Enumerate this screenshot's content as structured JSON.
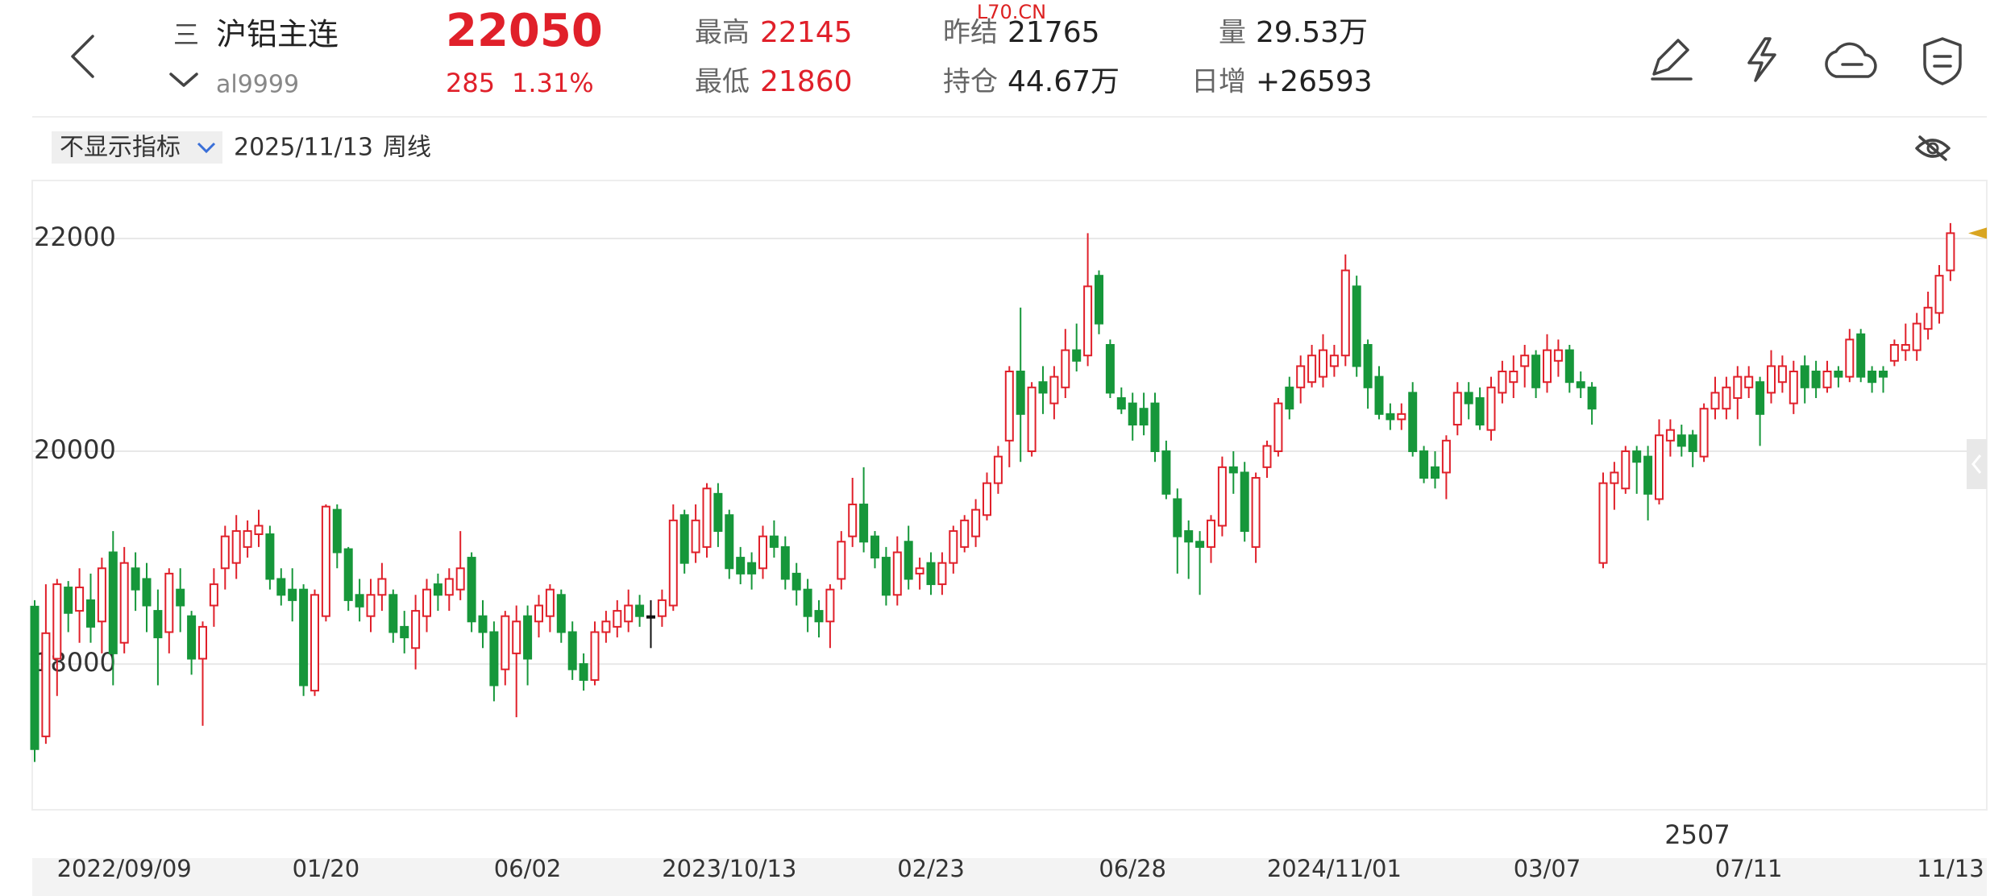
{
  "watermark": "L70.CN",
  "header": {
    "symbol_menu": "三",
    "name": "沪铝主连",
    "code": "al9999",
    "price": "22050",
    "change": "285",
    "change_pct": "1.31%",
    "high_label": "最高",
    "high": "22145",
    "low_label": "最低",
    "low": "21860",
    "prev_settle_label": "昨结",
    "prev_settle": "21765",
    "open_interest_label": "持仓",
    "open_interest": "44.67万",
    "volume_label": "量",
    "volume": "29.53万",
    "daily_increase_label": "日增",
    "daily_increase": "+26593"
  },
  "toolbar": {
    "indicator": "不显示指标",
    "date": "2025/11/13",
    "period": "周线"
  },
  "chart_data": {
    "type": "candlestick",
    "categories": [
      null,
      null,
      null,
      null,
      null,
      null,
      null,
      null,
      "2022/09/09",
      null,
      null,
      null,
      null,
      null,
      null,
      null,
      null,
      null,
      null,
      null,
      null,
      null,
      null,
      null,
      null,
      null,
      "01/20",
      null,
      null,
      null,
      null,
      null,
      null,
      null,
      null,
      null,
      null,
      null,
      null,
      null,
      null,
      null,
      null,
      null,
      "06/02",
      null,
      null,
      null,
      null,
      null,
      null,
      null,
      null,
      null,
      null,
      null,
      null,
      null,
      null,
      null,
      null,
      null,
      "2023/10/13",
      null,
      null,
      null,
      null,
      null,
      null,
      null,
      null,
      null,
      null,
      null,
      null,
      null,
      null,
      null,
      null,
      null,
      "02/23",
      null,
      null,
      null,
      null,
      null,
      null,
      null,
      null,
      null,
      null,
      null,
      null,
      null,
      null,
      null,
      null,
      null,
      "06/28",
      null,
      null,
      null,
      null,
      null,
      null,
      null,
      null,
      null,
      null,
      null,
      null,
      null,
      null,
      null,
      null,
      null,
      "2024/11/01",
      null,
      null,
      null,
      null,
      null,
      null,
      null,
      null,
      null,
      null,
      null,
      null,
      null,
      null,
      null,
      null,
      null,
      null,
      "03/07",
      null,
      null,
      null,
      null,
      null,
      null,
      null,
      null,
      null,
      null,
      null,
      null,
      null,
      null,
      null,
      null,
      null,
      "07/11",
      null,
      null,
      null,
      null,
      null,
      null,
      null,
      null,
      null,
      null,
      null,
      null,
      null,
      null,
      null,
      null,
      null,
      "11/13"
    ],
    "open": [
      18540,
      17320,
      18050,
      18720,
      18500,
      18600,
      18400,
      19050,
      18200,
      18900,
      18800,
      18500,
      18300,
      18700,
      18450,
      18050,
      18550,
      18900,
      18950,
      19100,
      19220,
      19220,
      18800,
      18700,
      18700,
      17750,
      18450,
      19450,
      19080,
      18650,
      18450,
      18650,
      18650,
      18350,
      18150,
      18450,
      18750,
      18650,
      18700,
      19000,
      18450,
      18300,
      17950,
      18100,
      18450,
      18400,
      18450,
      18650,
      18300,
      18000,
      17850,
      18300,
      18350,
      18400,
      18550,
      18450,
      18450,
      18550,
      19400,
      19050,
      19100,
      19600,
      19400,
      19000,
      18950,
      18900,
      19200,
      19100,
      18850,
      18700,
      18500,
      18400,
      18800,
      19200,
      19500,
      19200,
      19000,
      18650,
      19150,
      18850,
      18950,
      18750,
      18950,
      19100,
      19200,
      19400,
      19700,
      20100,
      20750,
      20000,
      20650,
      20450,
      20600,
      20950,
      20900,
      21650,
      21000,
      20500,
      20450,
      20400,
      20450,
      20000,
      19550,
      19250,
      19150,
      19100,
      19300,
      19850,
      19800,
      19100,
      19850,
      20000,
      20600,
      20600,
      20650,
      20700,
      20800,
      20900,
      21550,
      21000,
      20700,
      20350,
      20300,
      20550,
      20000,
      19850,
      19800,
      20250,
      20550,
      20500,
      20200,
      20550,
      20650,
      20800,
      20900,
      20650,
      20850,
      20950,
      20650,
      20600,
      18950,
      19700,
      19650,
      20000,
      19950,
      19550,
      20100,
      20150,
      20150,
      19950,
      20400,
      20400,
      20500,
      20600,
      20650,
      20550,
      20650,
      20450,
      20800,
      20750,
      20600,
      20750,
      20700,
      21100,
      20750,
      20750,
      20850,
      20950,
      20950,
      21150,
      21300,
      21700
    ],
    "high": [
      18600,
      18750,
      18800,
      18780,
      18900,
      18850,
      19000,
      19250,
      19100,
      19050,
      18950,
      18700,
      18900,
      18900,
      18500,
      18400,
      18900,
      19300,
      19400,
      19350,
      19450,
      19300,
      18900,
      18900,
      18750,
      18700,
      19500,
      19500,
      19100,
      18800,
      18800,
      18950,
      18700,
      18500,
      18650,
      18800,
      18850,
      18900,
      19250,
      19050,
      18600,
      18400,
      18500,
      18550,
      18550,
      18650,
      18750,
      18700,
      18400,
      18100,
      18400,
      18500,
      18600,
      18700,
      18650,
      18600,
      18700,
      19500,
      19450,
      19500,
      19700,
      19700,
      19450,
      19100,
      19050,
      19300,
      19350,
      19200,
      18950,
      18800,
      18600,
      18750,
      19250,
      19750,
      19850,
      19250,
      19100,
      19200,
      19300,
      19000,
      19050,
      19050,
      19300,
      19400,
      19550,
      19800,
      20050,
      20800,
      21350,
      20650,
      20800,
      20800,
      21150,
      21200,
      22050,
      21700,
      21050,
      20600,
      20550,
      20550,
      20550,
      20100,
      19650,
      19350,
      19250,
      19400,
      19950,
      20000,
      19900,
      19800,
      20100,
      20500,
      20700,
      20900,
      21000,
      21100,
      21000,
      21850,
      21650,
      21050,
      20800,
      20450,
      20450,
      20650,
      20050,
      20000,
      20150,
      20650,
      20650,
      20600,
      20700,
      20850,
      20900,
      21000,
      20950,
      21100,
      21050,
      21000,
      20750,
      20650,
      19800,
      19900,
      20050,
      20050,
      20050,
      20300,
      20300,
      20250,
      20200,
      20450,
      20700,
      20700,
      20800,
      20800,
      20700,
      20950,
      20900,
      20850,
      20900,
      20850,
      20850,
      20800,
      21150,
      21150,
      20800,
      20800,
      21050,
      21200,
      21300,
      21500,
      21750,
      22145
    ],
    "low": [
      17080,
      17250,
      17700,
      18300,
      18200,
      18200,
      18100,
      17800,
      18100,
      18500,
      18300,
      17800,
      18100,
      18300,
      17900,
      17420,
      18350,
      18700,
      18800,
      19000,
      19100,
      18700,
      18550,
      18400,
      17700,
      17700,
      18400,
      18900,
      18500,
      18400,
      18300,
      18500,
      18200,
      18100,
      17950,
      18300,
      18500,
      18500,
      18600,
      18300,
      18150,
      17650,
      17800,
      17500,
      17800,
      18250,
      18300,
      18200,
      17850,
      17750,
      17800,
      18200,
      18250,
      18300,
      18350,
      18150,
      18350,
      18500,
      18850,
      18950,
      19000,
      19100,
      18800,
      18750,
      18700,
      18800,
      19000,
      18700,
      18550,
      18300,
      18250,
      18150,
      18700,
      19100,
      19050,
      18900,
      18550,
      18550,
      18700,
      18700,
      18650,
      18650,
      18850,
      19050,
      19100,
      19350,
      19600,
      19850,
      19900,
      19950,
      20350,
      20300,
      20500,
      20750,
      20800,
      21100,
      20500,
      20350,
      20100,
      20150,
      19900,
      19550,
      18850,
      18800,
      18650,
      18950,
      19200,
      19600,
      19150,
      18950,
      19750,
      19950,
      20300,
      20450,
      20600,
      20600,
      20700,
      20800,
      20700,
      20400,
      20300,
      20200,
      20200,
      19950,
      19700,
      19650,
      19550,
      20150,
      20300,
      20200,
      20100,
      20450,
      20500,
      20600,
      20500,
      20550,
      20700,
      20550,
      20500,
      20250,
      18900,
      19450,
      19600,
      19600,
      19350,
      19500,
      19950,
      19950,
      19850,
      19900,
      20300,
      20300,
      20300,
      20500,
      20050,
      20450,
      20550,
      20350,
      20450,
      20500,
      20550,
      20600,
      20650,
      20650,
      20550,
      20550,
      20800,
      20850,
      20850,
      21050,
      21200,
      21600
    ],
    "close": [
      17200,
      18290,
      18750,
      18480,
      18720,
      18350,
      18900,
      18100,
      18950,
      18700,
      18550,
      18250,
      18850,
      18550,
      18050,
      18350,
      18750,
      19200,
      19250,
      19250,
      19300,
      18800,
      18650,
      18600,
      17800,
      18650,
      19480,
      19050,
      18600,
      18540,
      18650,
      18800,
      18300,
      18250,
      18500,
      18700,
      18650,
      18800,
      18900,
      18400,
      18300,
      17800,
      18450,
      18400,
      18050,
      18550,
      18700,
      18300,
      17950,
      17850,
      18300,
      18400,
      18500,
      18550,
      18450,
      18450,
      18600,
      19350,
      18950,
      19350,
      19650,
      19250,
      18900,
      18850,
      18850,
      19200,
      19100,
      18800,
      18700,
      18450,
      18400,
      18700,
      19150,
      19500,
      19150,
      19000,
      18650,
      19050,
      18800,
      18900,
      18750,
      18950,
      19250,
      19350,
      19450,
      19700,
      19950,
      20750,
      20350,
      20600,
      20550,
      20700,
      20950,
      20850,
      21550,
      21200,
      20550,
      20400,
      20250,
      20250,
      20000,
      19600,
      19200,
      19150,
      19100,
      19350,
      19850,
      19800,
      19250,
      19750,
      20050,
      20450,
      20400,
      20800,
      20900,
      20950,
      20900,
      21700,
      20800,
      20600,
      20350,
      20300,
      20350,
      20000,
      19750,
      19750,
      20100,
      20550,
      20450,
      20250,
      20600,
      20750,
      20750,
      20900,
      20600,
      20950,
      20950,
      20650,
      20600,
      20400,
      19700,
      19800,
      20000,
      19900,
      19600,
      20150,
      20200,
      20050,
      20000,
      20400,
      20550,
      20600,
      20700,
      20700,
      20350,
      20800,
      20800,
      20750,
      20600,
      20600,
      20750,
      20700,
      21050,
      20700,
      20650,
      20700,
      21000,
      21000,
      21200,
      21350,
      21650,
      22050
    ],
    "up_color": "#e0202a",
    "down_color": "#16973a",
    "flat_color": "#111111",
    "marker_color": "#d9a521",
    "ylim": [
      16630,
      22545
    ],
    "yticks": [
      18000,
      20000,
      22000
    ],
    "grid": true,
    "annotation": "2507"
  }
}
